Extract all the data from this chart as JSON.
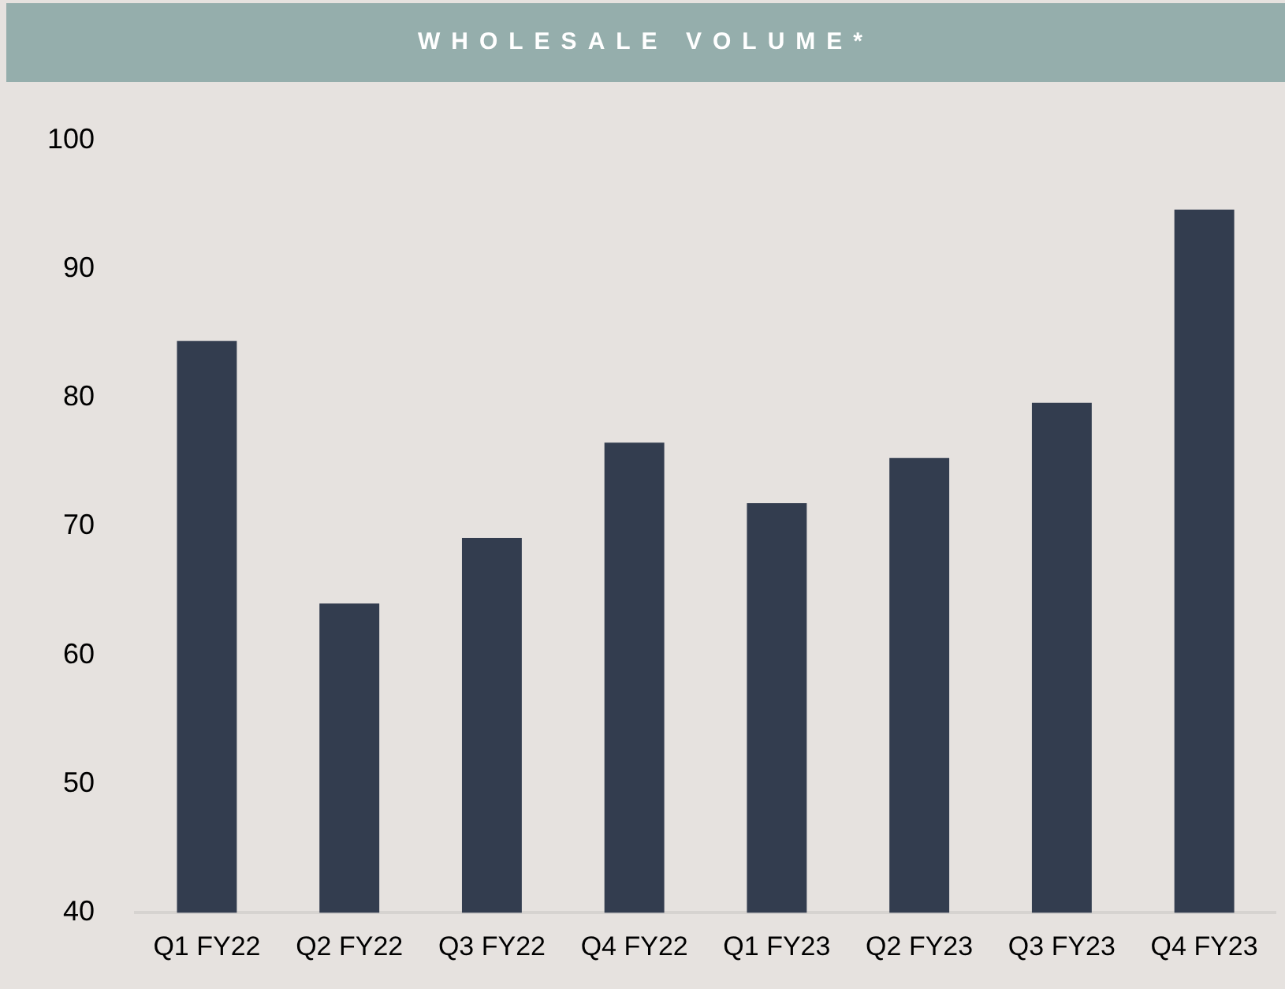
{
  "chart_data": {
    "type": "bar",
    "title": "WHOLESALE VOLUME*",
    "categories": [
      "Q1 FY22",
      "Q2 FY22",
      "Q3 FY22",
      "Q4 FY22",
      "Q1 FY23",
      "Q2 FY23",
      "Q3 FY23",
      "Q4 FY23"
    ],
    "values": [
      84.4,
      64.0,
      69.1,
      76.5,
      71.8,
      75.3,
      79.6,
      94.6
    ],
    "color": "#333d4f",
    "ylim": [
      40,
      100
    ],
    "yticks": [
      40,
      50,
      60,
      70,
      80,
      90,
      100
    ],
    "grid": false,
    "legend": false
  }
}
